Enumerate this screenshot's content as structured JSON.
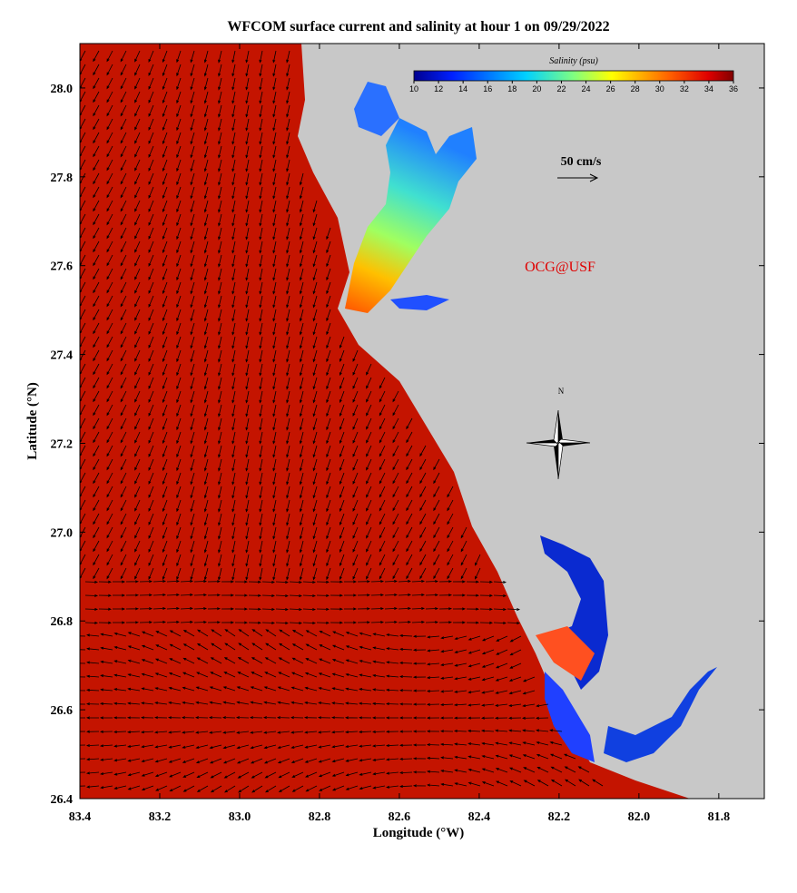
{
  "title": "WFCOM surface current and salinity at hour 1 on 09/29/2022",
  "x_axis": {
    "label": "Longitude (°W)",
    "lim": [
      83.4,
      81.686
    ],
    "ticks": [
      83.4,
      83.2,
      {
        "value": 83.0,
        "label": "83.0"
      },
      82.8,
      82.6,
      82.4,
      82.2,
      {
        "value": 82.0,
        "label": "82.0"
      },
      81.8
    ]
  },
  "y_axis": {
    "label": "Latitude (°N)",
    "lim": [
      26.4,
      28.1
    ],
    "ticks": [
      26.4,
      26.6,
      26.8,
      {
        "value": 27.0,
        "label": "27.0"
      },
      27.2,
      27.4,
      27.6,
      27.8,
      {
        "value": 28.0,
        "label": "28.0"
      }
    ]
  },
  "colorbar": {
    "label": "Salinity (psu)",
    "lim": [
      10,
      36
    ],
    "ticks": [
      10,
      12,
      14,
      16,
      18,
      20,
      22,
      24,
      26,
      28,
      30,
      32,
      34,
      36
    ]
  },
  "scale_label": "50 cm/s",
  "credit": "OCG@USF",
  "compass": "N"
}
